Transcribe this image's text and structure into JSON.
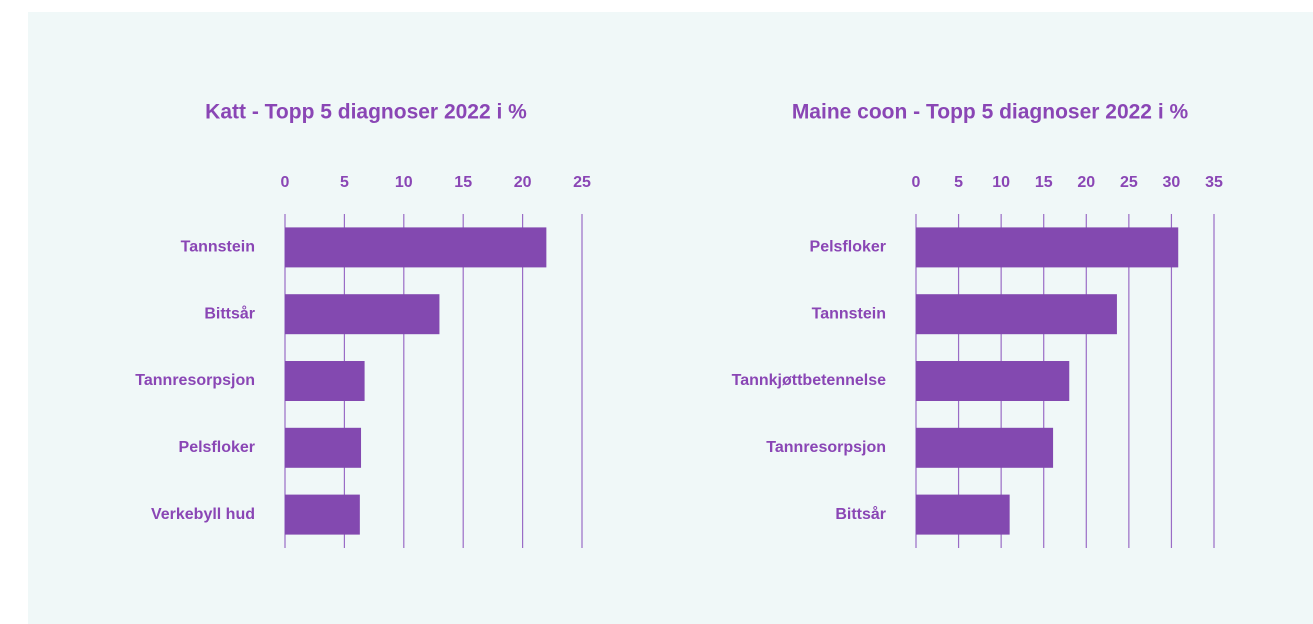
{
  "chart_data": [
    {
      "type": "bar",
      "orientation": "horizontal",
      "title": "Katt - Topp 5 diagnoser 2022 i %",
      "categories": [
        "Tannstein",
        "Bittsår",
        "Tannresorpsjon",
        "Pelsfloker",
        "Verkebyll hud"
      ],
      "values": [
        22,
        13,
        6.7,
        6.4,
        6.3
      ],
      "color": "#8349b0",
      "xlim": [
        0,
        25
      ],
      "xticks": [
        0,
        5,
        10,
        15,
        20,
        25
      ],
      "grid": true
    },
    {
      "type": "bar",
      "orientation": "horizontal",
      "title": "Maine coon - Topp 5 diagnoser 2022 i %",
      "categories": [
        "Pelsfloker",
        "Tannstein",
        "Tannkjøttbetennelse",
        "Tannresorpsjon",
        "Bittsår"
      ],
      "values": [
        30.8,
        23.6,
        18,
        16.1,
        11
      ],
      "color": "#8349b0",
      "xlim": [
        0,
        35
      ],
      "xticks": [
        0,
        5,
        10,
        15,
        20,
        25,
        30,
        35
      ],
      "grid": true
    }
  ]
}
